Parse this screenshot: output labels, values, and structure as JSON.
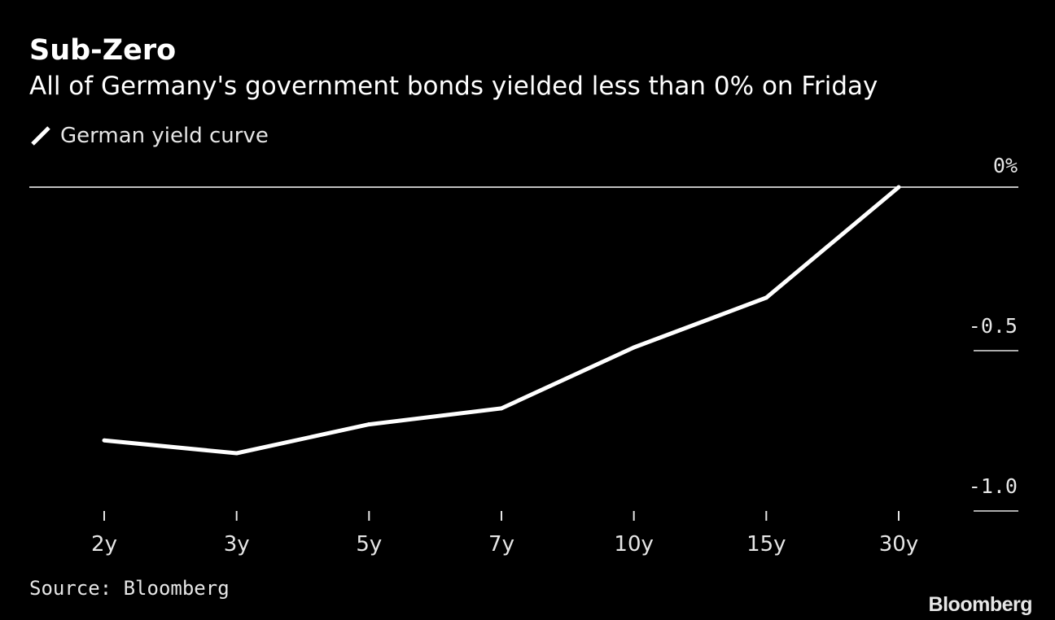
{
  "header": {
    "title": "Sub-Zero",
    "subtitle": "All of Germany's government bonds yielded less than 0% on Friday"
  },
  "legend": {
    "label": "German yield curve",
    "icon": "line-swatch-icon"
  },
  "footer": {
    "source": "Source: Bloomberg",
    "brand": "Bloomberg"
  },
  "colors": {
    "background": "#000000",
    "line": "#ffffff",
    "text": "#e6e6e6"
  },
  "chart_data": {
    "type": "line",
    "categories": [
      "2y",
      "3y",
      "5y",
      "7y",
      "10y",
      "15y",
      "30y"
    ],
    "series": [
      {
        "name": "German yield curve",
        "values": [
          -0.79,
          -0.83,
          -0.74,
          -0.69,
          -0.5,
          -0.345,
          0.0
        ]
      }
    ],
    "y_ticks": [
      {
        "value": 0,
        "label": "0%"
      },
      {
        "value": -0.5,
        "label": "-0.5"
      },
      {
        "value": -1.0,
        "label": "-1.0"
      }
    ],
    "ylim": [
      -1.0,
      0.0
    ],
    "y_axis_position": "right",
    "grid": false,
    "legend_position": "top-left"
  }
}
